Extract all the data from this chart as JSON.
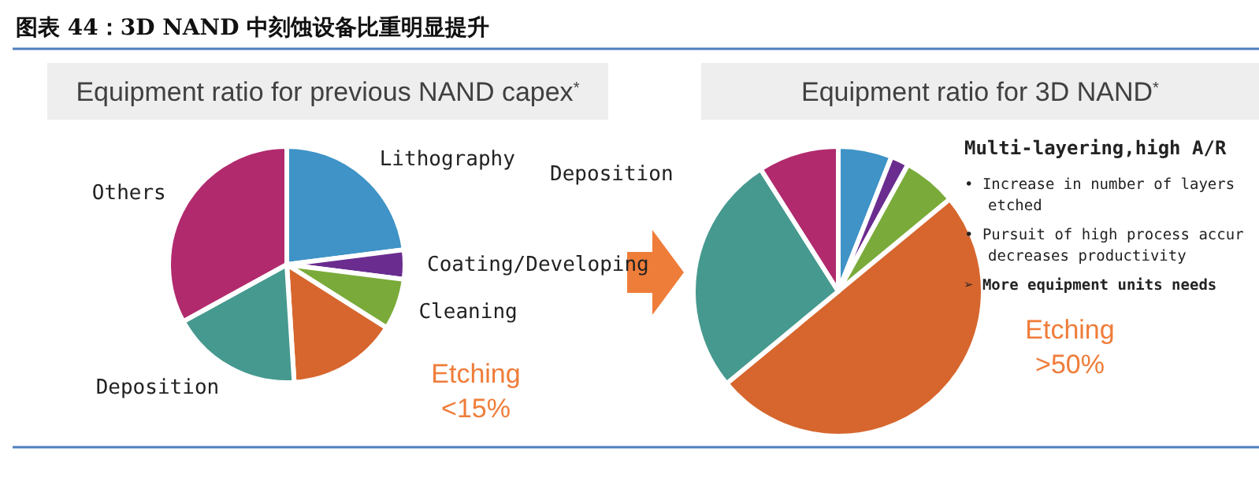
{
  "chart_data": [
    {
      "type": "pie",
      "title": "Equipment ratio for previous NAND capex$^{*}$",
      "categories": [
        "Lithography",
        "Coating/Developing",
        "Cleaning",
        "Etching",
        "Deposition",
        "Others"
      ],
      "values": [
        23,
        4,
        7,
        15,
        18,
        33
      ],
      "colors": [
        "#3f93c6",
        "#6a2d8f",
        "#7aab3a",
        "#d6662e",
        "#46998f",
        "#b12a6e"
      ],
      "value_labels": [
        null,
        null,
        null,
        "<15%",
        null,
        null
      ],
      "annotations": [
        "图表 44：3D NAND 中刻蚀设备比重明显提升"
      ]
    },
    {
      "type": "pie",
      "title": "Equipment ratio for 3D NAND$^{*}$",
      "categories": [
        null,
        null,
        null,
        "Etching",
        "Deposition",
        null
      ],
      "values": [
        6,
        2,
        6,
        50,
        27,
        9
      ],
      "colors": [
        "#3f93c6",
        "#6a2d8f",
        "#7aab3a",
        "#d6662e",
        "#46998f",
        "#b12a6e"
      ],
      "value_labels": [
        null,
        null,
        null,
        ">50%",
        null,
        null
      ],
      "annotations": [
        "Multi-layering,high A/R",
        "• Increase in number of layers etched",
        "• Pursuit of high process accur decreases productivity",
        "➢ More equipment units needs"
      ]
    }
  ]
}
